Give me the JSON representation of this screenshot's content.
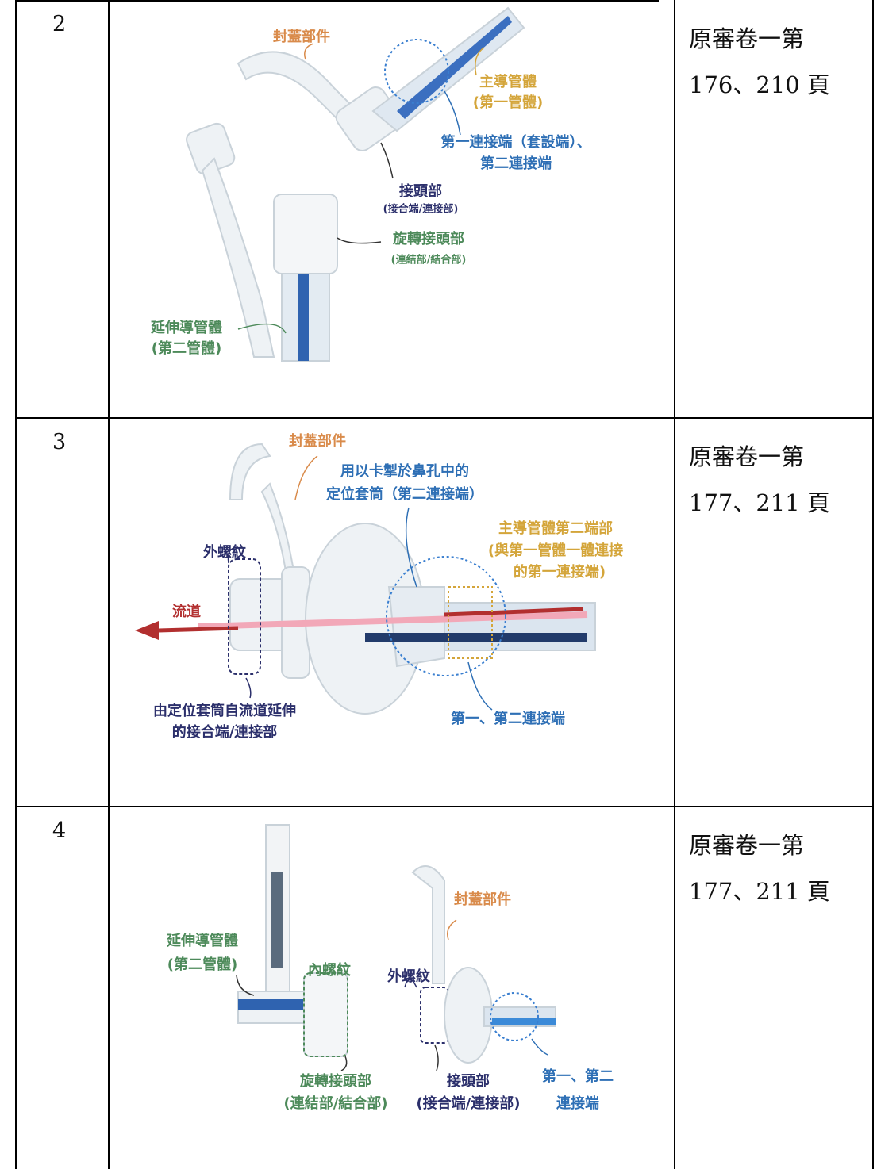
{
  "rows": [
    {
      "number": "2",
      "labels": [
        "封蓋部件",
        "主導管體",
        "(第一管體)",
        "第一連接端（套設端）、",
        "第二連接端",
        "接頭部",
        "(接合端/連接部)",
        "旋轉接頭部",
        "(連結部/結合部)",
        "延伸導管體",
        "(第二管體)"
      ],
      "reference": [
        "原審卷一第",
        "176、210 頁"
      ]
    },
    {
      "number": "3",
      "labels": [
        "封蓋部件",
        "用以卡掣於鼻孔中的",
        "定位套筒（第二連接端）",
        "主導管體第二端部",
        "(與第一管體一體連接",
        "的第一連接端)",
        "外螺紋",
        "流道",
        "由定位套筒自流道延伸",
        "的接合端/連接部",
        "第一、第二連接端"
      ],
      "reference": [
        "原審卷一第",
        "177、211 頁"
      ]
    },
    {
      "number": "4",
      "labels": [
        "封蓋部件",
        "延伸導管體",
        "(第二管體)",
        "內螺紋",
        "外螺紋",
        "旋轉接頭部",
        "(連結部/結合部)",
        "接頭部",
        "(接合端/連接部)",
        "第一、第二",
        "連接端"
      ],
      "reference": [
        "原審卷一第",
        "177、211 頁"
      ]
    }
  ]
}
